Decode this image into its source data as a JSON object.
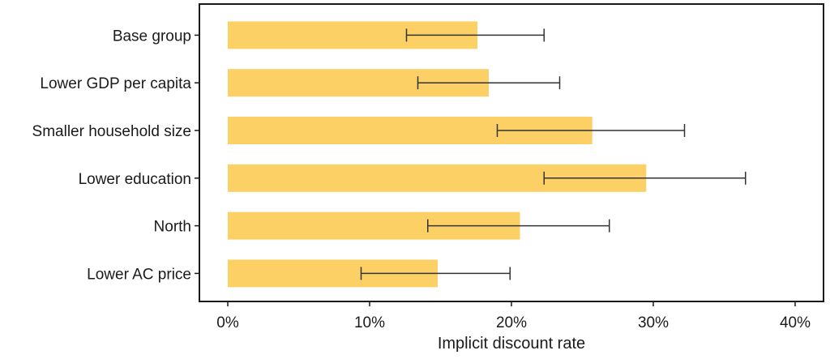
{
  "chart_data": {
    "type": "bar",
    "orientation": "horizontal",
    "categories": [
      "Base group",
      "Lower GDP per capita",
      "Smaller household size",
      "Lower education",
      "North",
      "Lower AC price"
    ],
    "values": [
      0.176,
      0.184,
      0.257,
      0.295,
      0.206,
      0.148
    ],
    "error_low": [
      0.126,
      0.134,
      0.19,
      0.223,
      0.141,
      0.094
    ],
    "error_high": [
      0.223,
      0.234,
      0.322,
      0.365,
      0.269,
      0.199
    ],
    "xlabel": "Implicit discount rate",
    "ylabel": "",
    "title": "",
    "xlim": [
      -0.02,
      0.42
    ],
    "x_ticks": [
      0,
      0.1,
      0.2,
      0.3,
      0.4
    ],
    "x_tick_labels": [
      "0%",
      "10%",
      "20%",
      "30%",
      "40%"
    ],
    "grid": false,
    "legend": "none",
    "colors": {
      "bar": "#fdd066",
      "error_bar": "#333333",
      "axis": "#1a1a1a"
    }
  }
}
